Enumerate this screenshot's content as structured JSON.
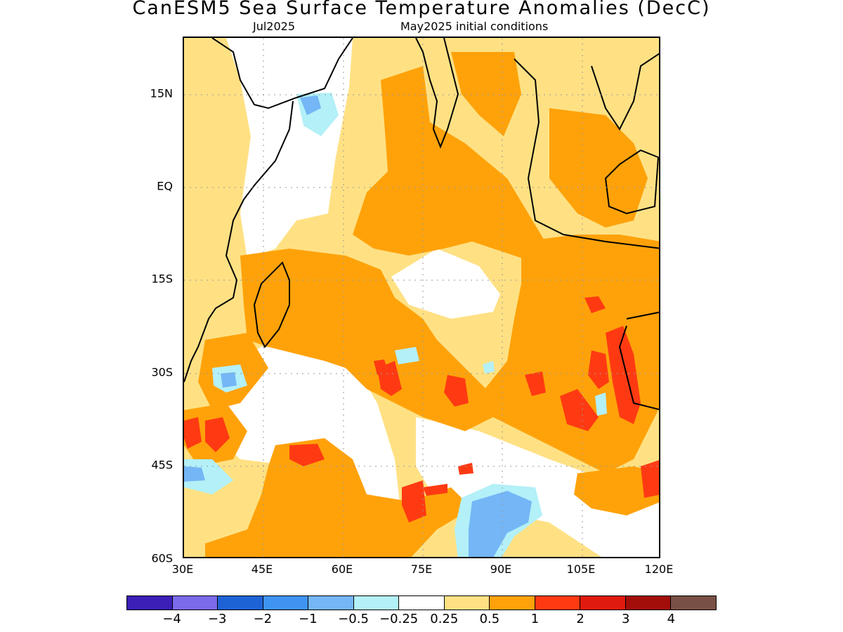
{
  "title": "CanESM5 Sea Surface Temperature Anomalies (DecC)",
  "subtitle_left": "Jul2025",
  "subtitle_right": "May2025 initial conditions",
  "lat_labels": [
    "15N",
    "EQ",
    "15S",
    "30S",
    "45S",
    "60S"
  ],
  "lon_labels": [
    "30E",
    "45E",
    "60E",
    "75E",
    "90E",
    "105E",
    "120E"
  ],
  "colorbar": {
    "colors": [
      "#3b1fb7",
      "#7b6ae9",
      "#1e63d6",
      "#3f94f2",
      "#74b6f6",
      "#b3f0f8",
      "#ffffff",
      "#ffe184",
      "#ffa20a",
      "#ff3a12",
      "#e01a0c",
      "#a30d0a",
      "#7a5045"
    ],
    "labels": [
      "−4",
      "−3",
      "−2",
      "−1",
      "−0.5",
      "−0.25",
      "0.25",
      "0.5",
      "1",
      "2",
      "3",
      "4"
    ]
  }
}
